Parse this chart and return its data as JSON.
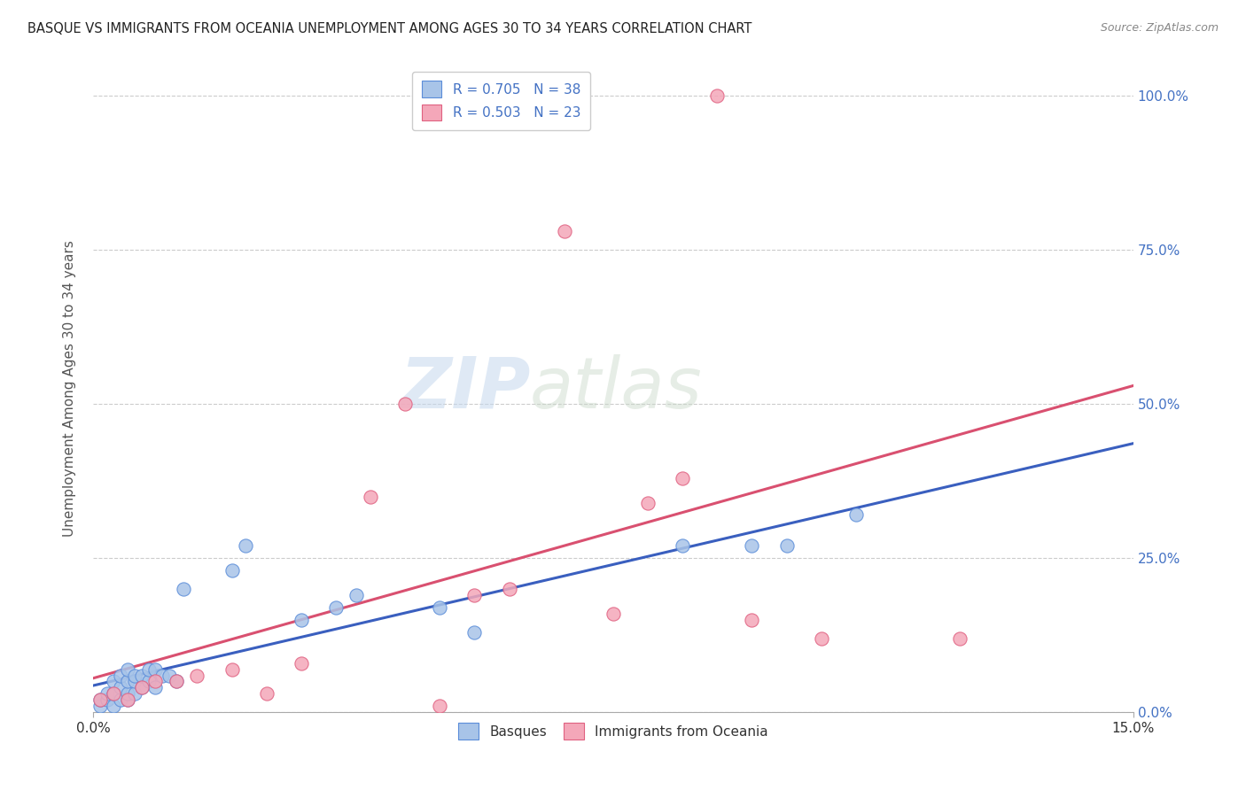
{
  "title": "BASQUE VS IMMIGRANTS FROM OCEANIA UNEMPLOYMENT AMONG AGES 30 TO 34 YEARS CORRELATION CHART",
  "source": "Source: ZipAtlas.com",
  "ylabel": "Unemployment Among Ages 30 to 34 years",
  "yaxis_labels": [
    "0.0%",
    "25.0%",
    "50.0%",
    "75.0%",
    "100.0%"
  ],
  "yaxis_values": [
    0.0,
    0.25,
    0.5,
    0.75,
    1.0
  ],
  "xlim": [
    0.0,
    0.15
  ],
  "ylim": [
    0.0,
    1.05
  ],
  "xtick_labels": [
    "0.0%",
    "15.0%"
  ],
  "xtick_positions": [
    0.0,
    0.15
  ],
  "basque_scatter_color": "#a8c4e8",
  "basque_edge_color": "#5b8dd9",
  "oceania_scatter_color": "#f4a7b9",
  "oceania_edge_color": "#e06080",
  "basque_line_color": "#3a5fbf",
  "oceania_line_color": "#d95070",
  "legend_R_basque": "R = 0.705",
  "legend_N_basque": "N = 38",
  "legend_R_oceania": "R = 0.503",
  "legend_N_oceania": "N = 23",
  "legend_label_basque": "Basques",
  "legend_label_oceania": "Immigrants from Oceania",
  "watermark_zip": "ZIP",
  "watermark_atlas": "atlas",
  "bg_color": "#ffffff",
  "grid_color": "#cccccc",
  "title_color": "#222222",
  "right_axis_color": "#4472c4",
  "basque_x": [
    0.001,
    0.001,
    0.002,
    0.002,
    0.003,
    0.003,
    0.003,
    0.004,
    0.004,
    0.004,
    0.005,
    0.005,
    0.005,
    0.005,
    0.006,
    0.006,
    0.006,
    0.007,
    0.007,
    0.008,
    0.008,
    0.009,
    0.009,
    0.01,
    0.011,
    0.012,
    0.013,
    0.02,
    0.022,
    0.03,
    0.035,
    0.038,
    0.05,
    0.055,
    0.085,
    0.095,
    0.1,
    0.11
  ],
  "basque_y": [
    0.01,
    0.02,
    0.02,
    0.03,
    0.01,
    0.03,
    0.05,
    0.02,
    0.04,
    0.06,
    0.02,
    0.03,
    0.05,
    0.07,
    0.03,
    0.05,
    0.06,
    0.04,
    0.06,
    0.05,
    0.07,
    0.04,
    0.07,
    0.06,
    0.06,
    0.05,
    0.2,
    0.23,
    0.27,
    0.15,
    0.17,
    0.19,
    0.17,
    0.13,
    0.27,
    0.27,
    0.27,
    0.32
  ],
  "oceania_x": [
    0.001,
    0.003,
    0.005,
    0.007,
    0.009,
    0.012,
    0.015,
    0.02,
    0.025,
    0.03,
    0.04,
    0.045,
    0.05,
    0.055,
    0.06,
    0.068,
    0.075,
    0.08,
    0.085,
    0.09,
    0.095,
    0.105,
    0.125
  ],
  "oceania_y": [
    0.02,
    0.03,
    0.02,
    0.04,
    0.05,
    0.05,
    0.06,
    0.07,
    0.03,
    0.08,
    0.35,
    0.5,
    0.01,
    0.19,
    0.2,
    0.78,
    0.16,
    0.34,
    0.38,
    1.0,
    0.15,
    0.12,
    0.12
  ]
}
